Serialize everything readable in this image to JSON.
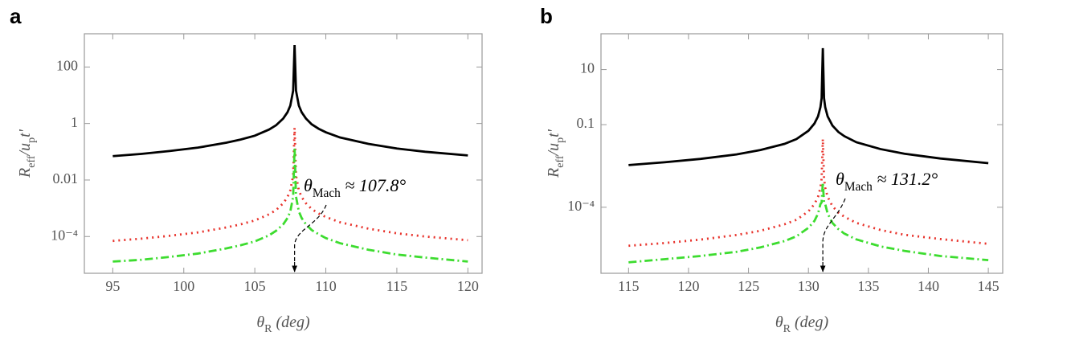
{
  "chart_data": [
    {
      "type": "line",
      "panel_label": "a",
      "log_y": true,
      "xlabel": [
        {
          "text": "θ"
        },
        {
          "text": "R",
          "sub": true
        },
        {
          "text": " (deg)"
        }
      ],
      "ylabel": [
        {
          "text": "R"
        },
        {
          "text": "eff",
          "sub": true
        },
        {
          "text": "/u"
        },
        {
          "text": "p",
          "sub": true
        },
        {
          "text": "t'"
        }
      ],
      "annotation": {
        "x": 107.8,
        "parts": [
          {
            "text": "θ"
          },
          {
            "text": "Mach",
            "sub": true
          },
          {
            "text": " ≈ 107.8°"
          }
        ]
      },
      "xlim": [
        93,
        121
      ],
      "xticks": [
        95,
        100,
        105,
        110,
        115,
        120
      ],
      "ylim": [
        5e-06,
        1500
      ],
      "yticks": [
        100,
        1,
        0.01,
        {
          "value": 0.0001,
          "label": "10⁻⁴"
        }
      ],
      "x": [
        95,
        97,
        99,
        101,
        103,
        104,
        105,
        106,
        106.5,
        107,
        107.3,
        107.5,
        107.7,
        107.8,
        107.9,
        108.1,
        108.3,
        108.6,
        109,
        109.5,
        110,
        111,
        113,
        115,
        117,
        120
      ],
      "series": [
        {
          "color": "#000000",
          "style": "solid",
          "values": [
            0.07,
            0.084,
            0.106,
            0.14,
            0.21,
            0.27,
            0.37,
            0.61,
            0.87,
            1.5,
            2.5,
            4.3,
            14.6,
            600,
            14.6,
            4.3,
            2.5,
            1.5,
            0.94,
            0.65,
            0.49,
            0.32,
            0.19,
            0.13,
            0.1,
            0.074
          ]
        },
        {
          "color": "#e8322b",
          "style": "dotted",
          "values": [
            7e-05,
            8.4e-05,
            0.000106,
            0.00014,
            0.00021,
            0.00027,
            0.00037,
            0.00061,
            0.00087,
            0.0015,
            0.0025,
            0.0043,
            0.0146,
            0.7,
            0.0146,
            0.0043,
            0.0025,
            0.0015,
            0.00094,
            0.00065,
            0.00049,
            0.00032,
            0.00019,
            0.00013,
            0.0001,
            7.4e-05
          ]
        },
        {
          "color": "#3ddc2f",
          "style": "dashdot",
          "values": [
            1.3e-05,
            1.5e-05,
            1.9e-05,
            2.5e-05,
            3.8e-05,
            4.9e-05,
            6.7e-05,
            0.00011,
            0.00016,
            0.00027,
            0.00045,
            0.00077,
            0.0026,
            0.14,
            0.0026,
            0.00077,
            0.00045,
            0.00027,
            0.00017,
            0.00012,
            8.8e-05,
            5.8e-05,
            3.4e-05,
            2.3e-05,
            1.8e-05,
            1.3e-05
          ]
        }
      ]
    },
    {
      "type": "line",
      "panel_label": "b",
      "log_y": true,
      "xlabel": [
        {
          "text": "θ"
        },
        {
          "text": "R",
          "sub": true
        },
        {
          "text": " (deg)"
        }
      ],
      "ylabel": [
        {
          "text": "R"
        },
        {
          "text": "eff",
          "sub": true
        },
        {
          "text": "/u"
        },
        {
          "text": "p",
          "sub": true
        },
        {
          "text": "t'"
        }
      ],
      "annotation": {
        "x": 131.2,
        "parts": [
          {
            "text": "θ"
          },
          {
            "text": "Mach",
            "sub": true
          },
          {
            "text": " ≈ 131.2°"
          }
        ]
      },
      "xlim": [
        112.7,
        146.2
      ],
      "xticks": [
        115,
        120,
        125,
        130,
        135,
        140,
        145
      ],
      "ylim": [
        4e-07,
        200
      ],
      "yticks": [
        10,
        0.1,
        {
          "value": 0.0001,
          "label": "10⁻⁴"
        }
      ],
      "x": [
        115,
        118,
        121,
        124,
        126,
        128,
        129,
        130,
        130.5,
        130.8,
        131,
        131.1,
        131.2,
        131.3,
        131.4,
        131.6,
        132,
        132.5,
        133,
        134,
        136,
        138,
        141,
        145
      ],
      "series": [
        {
          "color": "#000000",
          "style": "solid",
          "values": [
            0.0034,
            0.0043,
            0.0057,
            0.0083,
            0.012,
            0.02,
            0.03,
            0.06,
            0.11,
            0.2,
            0.43,
            0.92,
            60,
            0.92,
            0.43,
            0.2,
            0.093,
            0.054,
            0.038,
            0.023,
            0.013,
            0.0088,
            0.0059,
            0.004
          ]
        },
        {
          "color": "#e8322b",
          "style": "dotted",
          "values": [
            4e-06,
            5e-06,
            6.7e-06,
            9.8e-06,
            1.4e-05,
            2.4e-05,
            3.5e-05,
            7.1e-05,
            0.00013,
            0.00024,
            0.00051,
            0.0011,
            0.03,
            0.0011,
            0.00051,
            0.00024,
            0.00011,
            6.4e-05,
            4.5e-05,
            2.7e-05,
            1.5e-05,
            1e-05,
            7e-06,
            4.7e-06
          ]
        },
        {
          "color": "#3ddc2f",
          "style": "dashdot",
          "values": [
            1e-06,
            1.3e-06,
            1.7e-06,
            2.4e-06,
            3.5e-06,
            5.9e-06,
            8.8e-06,
            1.8e-05,
            3.2e-05,
            5.9e-05,
            0.00013,
            0.00015,
            0.0008,
            0.00015,
            0.00013,
            5.9e-05,
            2.7e-05,
            1.6e-05,
            1.1e-05,
            6.8e-06,
            3.8e-06,
            2.6e-06,
            1.7e-06,
            1.2e-06
          ]
        }
      ]
    }
  ]
}
